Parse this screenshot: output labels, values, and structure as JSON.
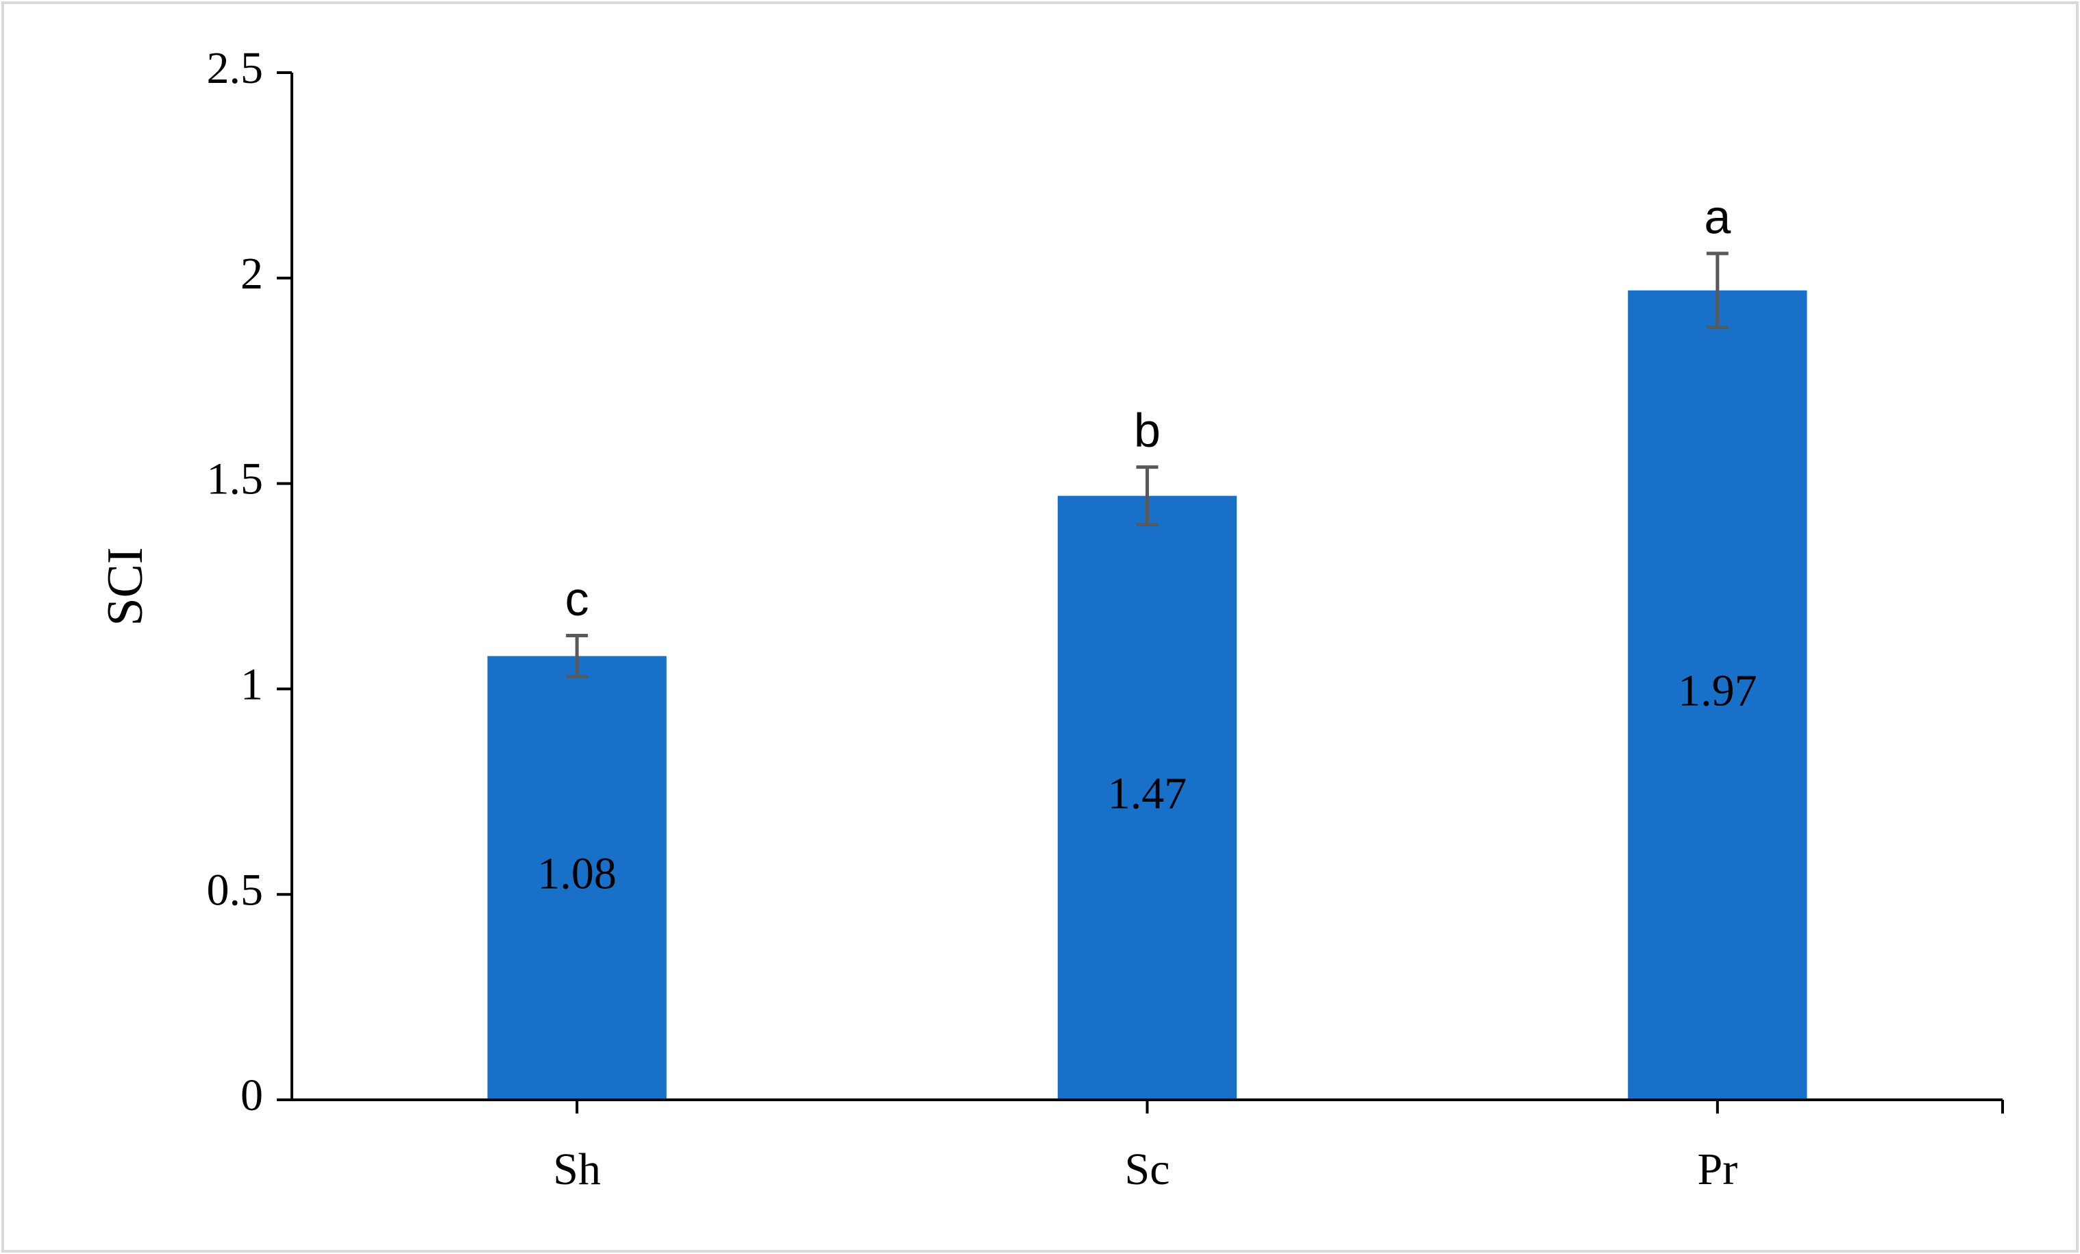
{
  "chart_data": {
    "type": "bar",
    "y_label": "SCI",
    "categories": [
      "Sh",
      "Sc",
      "Pr"
    ],
    "values": [
      1.08,
      1.47,
      1.97
    ],
    "errors": [
      0.05,
      0.07,
      0.09
    ],
    "annotations": [
      "c",
      "b",
      "a"
    ],
    "color": "#1870c8",
    "error_color": "#595959",
    "ylim": [
      0,
      2.5
    ],
    "yticks": [
      0,
      0.5,
      1,
      1.5,
      2,
      2.5
    ],
    "grid": false
  }
}
